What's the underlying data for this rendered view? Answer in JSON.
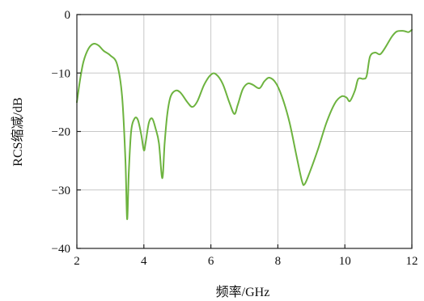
{
  "chart_data": {
    "type": "line",
    "xlabel": "频率/GHz",
    "ylabel": "RCS缩减/dB",
    "xlim": [
      2,
      12
    ],
    "ylim": [
      -40,
      0
    ],
    "xticks": [
      2,
      4,
      6,
      8,
      10,
      12
    ],
    "yticks": [
      0,
      -10,
      -20,
      -30,
      -40
    ],
    "grid": true,
    "series": [
      {
        "color": "#6db33f",
        "points": [
          [
            2.0,
            -15.0
          ],
          [
            2.1,
            -11.0
          ],
          [
            2.2,
            -8.0
          ],
          [
            2.35,
            -5.8
          ],
          [
            2.5,
            -5.0
          ],
          [
            2.65,
            -5.3
          ],
          [
            2.8,
            -6.2
          ],
          [
            3.0,
            -7.0
          ],
          [
            3.2,
            -8.5
          ],
          [
            3.35,
            -14.0
          ],
          [
            3.45,
            -25.0
          ],
          [
            3.5,
            -35.0
          ],
          [
            3.55,
            -27.0
          ],
          [
            3.62,
            -20.0
          ],
          [
            3.72,
            -17.8
          ],
          [
            3.82,
            -18.0
          ],
          [
            3.92,
            -20.5
          ],
          [
            4.0,
            -23.2
          ],
          [
            4.05,
            -22.0
          ],
          [
            4.15,
            -18.5
          ],
          [
            4.25,
            -17.8
          ],
          [
            4.35,
            -19.5
          ],
          [
            4.45,
            -22.0
          ],
          [
            4.55,
            -28.0
          ],
          [
            4.62,
            -22.0
          ],
          [
            4.7,
            -17.0
          ],
          [
            4.8,
            -14.0
          ],
          [
            4.95,
            -13.0
          ],
          [
            5.1,
            -13.4
          ],
          [
            5.3,
            -15.0
          ],
          [
            5.45,
            -15.8
          ],
          [
            5.6,
            -14.8
          ],
          [
            5.8,
            -12.0
          ],
          [
            6.0,
            -10.3
          ],
          [
            6.15,
            -10.2
          ],
          [
            6.35,
            -11.8
          ],
          [
            6.55,
            -15.0
          ],
          [
            6.7,
            -17.0
          ],
          [
            6.8,
            -15.5
          ],
          [
            6.95,
            -12.8
          ],
          [
            7.1,
            -11.8
          ],
          [
            7.25,
            -12.0
          ],
          [
            7.45,
            -12.6
          ],
          [
            7.6,
            -11.4
          ],
          [
            7.75,
            -10.8
          ],
          [
            7.95,
            -11.8
          ],
          [
            8.15,
            -14.5
          ],
          [
            8.35,
            -18.5
          ],
          [
            8.55,
            -24.0
          ],
          [
            8.72,
            -28.5
          ],
          [
            8.8,
            -29.0
          ],
          [
            8.95,
            -27.0
          ],
          [
            9.2,
            -23.0
          ],
          [
            9.45,
            -18.5
          ],
          [
            9.7,
            -15.2
          ],
          [
            9.9,
            -14.0
          ],
          [
            10.05,
            -14.2
          ],
          [
            10.15,
            -14.8
          ],
          [
            10.3,
            -13.0
          ],
          [
            10.4,
            -11.0
          ],
          [
            10.55,
            -11.0
          ],
          [
            10.65,
            -10.5
          ],
          [
            10.75,
            -7.2
          ],
          [
            10.9,
            -6.5
          ],
          [
            11.05,
            -6.8
          ],
          [
            11.2,
            -5.7
          ],
          [
            11.4,
            -3.8
          ],
          [
            11.55,
            -2.9
          ],
          [
            11.75,
            -2.8
          ],
          [
            11.9,
            -3.0
          ],
          [
            12.0,
            -2.6
          ]
        ]
      }
    ]
  }
}
